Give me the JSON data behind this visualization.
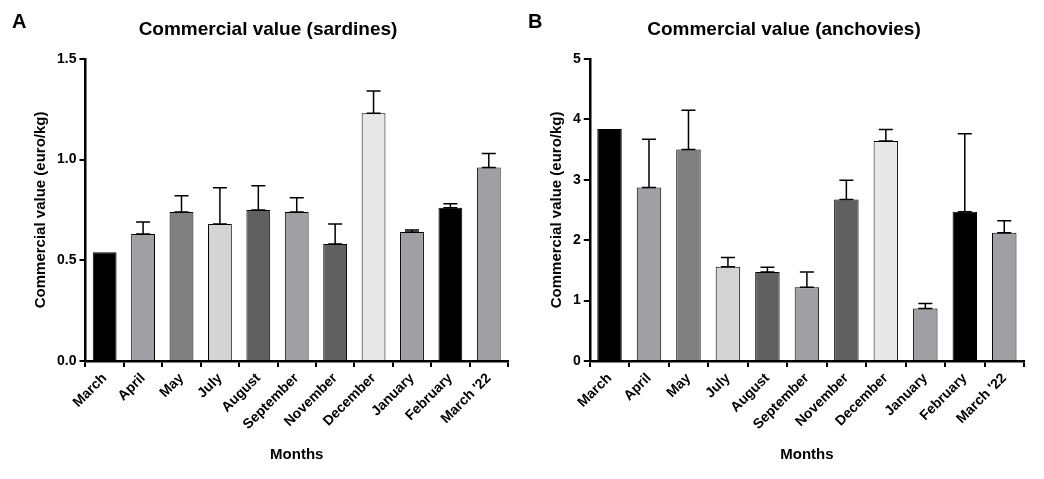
{
  "chart_data": [
    {
      "type": "bar",
      "title": "Commercial value (sardines)",
      "xlabel": "Months",
      "ylabel": "Commercial value (euro/kg)",
      "annotations": [
        "A"
      ],
      "categories": [
        "March",
        "April",
        "May",
        "July",
        "August",
        "September",
        "November",
        "December",
        "January",
        "February",
        "March '22"
      ],
      "values": [
        0.54,
        0.63,
        0.74,
        0.68,
        0.75,
        0.74,
        0.58,
        1.23,
        0.64,
        0.76,
        0.96
      ],
      "errors": [
        null,
        [
          0.63,
          0.69
        ],
        [
          0.74,
          0.82
        ],
        [
          0.68,
          0.86
        ],
        [
          0.75,
          0.87
        ],
        [
          0.74,
          0.81
        ],
        [
          0.58,
          0.68
        ],
        [
          1.23,
          1.34
        ],
        [
          0.64,
          0.65
        ],
        [
          0.76,
          0.78
        ],
        [
          0.96,
          1.03
        ]
      ],
      "colors": [
        "#000000",
        "#a0a0a4",
        "#808080",
        "#d4d4d4",
        "#606060",
        "#a0a0a4",
        "#606060",
        "#e8e8e8",
        "#a0a0a4",
        "#000000",
        "#a0a0a4"
      ],
      "ylim": [
        0,
        1.5
      ],
      "yticks": [
        {
          "value": 0,
          "label": "0.0"
        },
        {
          "value": 0.5,
          "label": "0.5"
        },
        {
          "value": 1,
          "label": "1.0"
        },
        {
          "value": 1.5,
          "label": "1.5"
        }
      ],
      "grid": false,
      "legend": false
    },
    {
      "type": "bar",
      "title": "Commercial value (anchovies)",
      "xlabel": "Months",
      "ylabel": "Commercial value (euro/kg)",
      "annotations": [
        "B"
      ],
      "categories": [
        "March",
        "April",
        "May",
        "July",
        "August",
        "September",
        "November",
        "December",
        "January",
        "February",
        "March '22"
      ],
      "values": [
        3.84,
        2.87,
        3.5,
        1.56,
        1.47,
        1.22,
        2.67,
        3.64,
        0.87,
        2.47,
        2.12
      ],
      "errors": [
        null,
        [
          2.87,
          3.67
        ],
        [
          3.5,
          4.15
        ],
        [
          1.56,
          1.71
        ],
        [
          1.47,
          1.55
        ],
        [
          1.22,
          1.47
        ],
        [
          2.67,
          2.99
        ],
        [
          3.64,
          3.83
        ],
        [
          0.87,
          0.95
        ],
        [
          2.47,
          3.76
        ],
        [
          2.12,
          2.32
        ]
      ],
      "colors": [
        "#000000",
        "#a0a0a4",
        "#808080",
        "#d4d4d4",
        "#606060",
        "#a0a0a4",
        "#606060",
        "#e8e8e8",
        "#a0a0a4",
        "#000000",
        "#a0a0a4"
      ],
      "ylim": [
        0,
        5
      ],
      "yticks": [
        0,
        1,
        2,
        3,
        4,
        5
      ],
      "grid": false,
      "legend": false
    }
  ]
}
